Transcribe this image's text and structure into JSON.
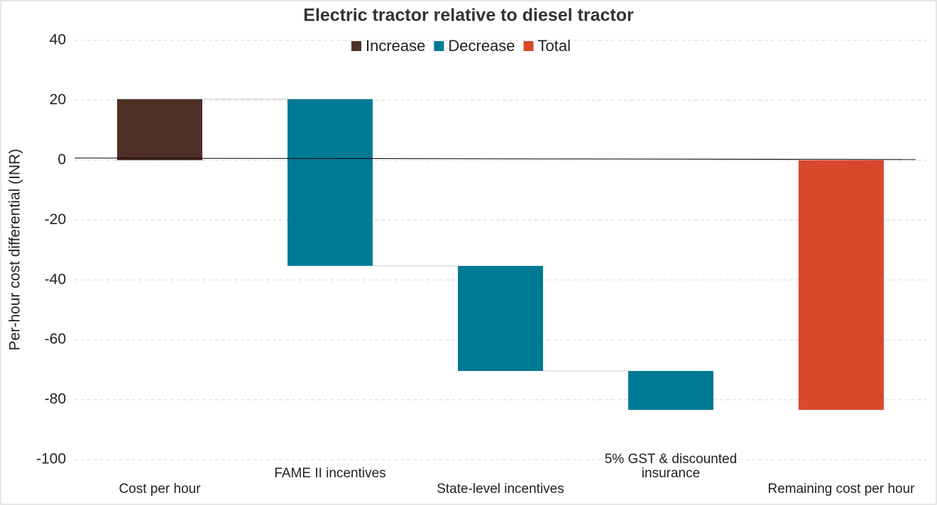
{
  "chart_data": {
    "type": "waterfall",
    "title": "Electric tractor relative to diesel tractor",
    "y_label": "Per-hour cost differential (INR)",
    "categories": [
      "Cost per hour",
      "FAME II incentives",
      "State-level incentives",
      "5% GST & discounted insurance",
      "Remaining cost per hour"
    ],
    "series": [
      {
        "name": "Increase",
        "color": "#4e3027",
        "values": [
          20.4,
          null,
          null,
          null,
          null
        ]
      },
      {
        "name": "Decrease",
        "color": "#007a94",
        "values": [
          null,
          -55.7,
          -35.1,
          -13,
          null
        ]
      },
      {
        "name": "Total",
        "color": "#d8492c",
        "values": [
          null,
          null,
          null,
          null,
          -83.4
        ]
      }
    ],
    "ylim": [
      -100,
      40
    ],
    "yticks": [
      40,
      20,
      0,
      -20,
      -40,
      -60,
      -80,
      -100
    ],
    "grid": true
  }
}
